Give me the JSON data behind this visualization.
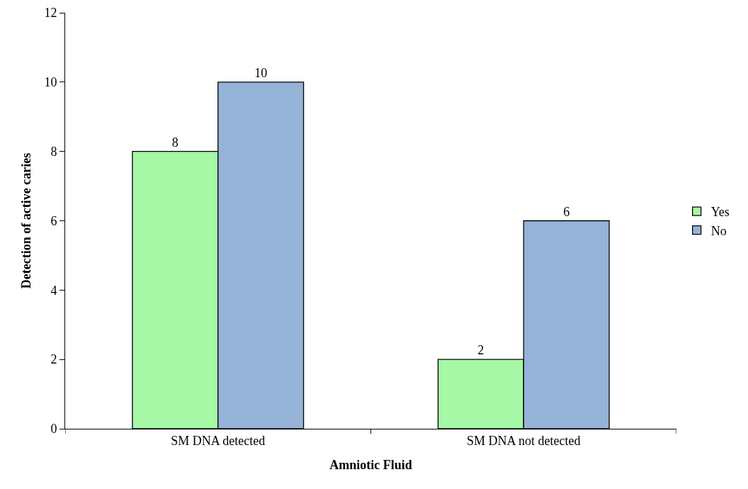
{
  "chart_data": {
    "type": "bar",
    "xlabel": "Amniotic Fluid",
    "ylabel": "Detection of active caries",
    "categories": [
      "SM DNA detected",
      "SM DNA not detected"
    ],
    "series": [
      {
        "name": "Yes",
        "color": "#a6f7a6",
        "values": [
          8,
          2
        ]
      },
      {
        "name": "No",
        "color": "#95b3d7",
        "values": [
          10,
          6
        ]
      }
    ],
    "ylim": [
      0,
      12
    ],
    "yticks": [
      0,
      2,
      4,
      6,
      8,
      10,
      12
    ],
    "grid": false,
    "legend": "right",
    "data_labels": true
  }
}
